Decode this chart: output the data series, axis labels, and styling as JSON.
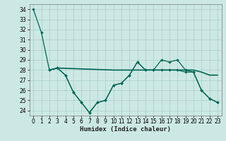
{
  "title": "",
  "xlabel": "Humidex (Indice chaleur)",
  "background_color": "#cce8e4",
  "grid_color": "#a8cec8",
  "line_color": "#006655",
  "xlim": [
    -0.5,
    23.5
  ],
  "ylim": [
    23.5,
    34.5
  ],
  "yticks": [
    24,
    25,
    26,
    27,
    28,
    29,
    30,
    31,
    32,
    33,
    34
  ],
  "xticks": [
    0,
    1,
    2,
    3,
    4,
    5,
    6,
    7,
    8,
    9,
    10,
    11,
    12,
    13,
    14,
    15,
    16,
    17,
    18,
    19,
    20,
    21,
    22,
    23
  ],
  "line1_x": [
    0,
    1,
    2,
    3,
    4,
    5,
    6,
    7,
    8,
    9,
    10,
    11,
    12,
    13,
    14,
    15,
    16,
    17,
    18,
    19,
    20,
    21,
    22,
    23
  ],
  "line1_y": [
    34.0,
    31.7,
    28.0,
    28.2,
    27.5,
    25.8,
    24.8,
    23.8,
    24.8,
    25.0,
    26.5,
    26.7,
    27.5,
    28.8,
    28.0,
    28.0,
    28.0,
    28.0,
    28.0,
    27.8,
    27.8,
    26.0,
    25.2,
    24.8
  ],
  "line2_x": [
    2,
    3,
    10,
    11,
    12,
    13,
    14,
    15,
    16,
    17,
    18,
    19,
    20,
    21,
    22,
    23
  ],
  "line2_y": [
    28.0,
    28.2,
    28.0,
    28.0,
    28.0,
    28.0,
    28.0,
    28.0,
    28.0,
    28.0,
    28.0,
    28.0,
    28.0,
    27.8,
    27.5,
    27.5
  ],
  "line3_x": [
    2,
    3,
    4,
    5,
    6,
    7,
    8,
    9,
    10,
    11,
    12,
    13,
    14,
    15,
    16,
    17,
    18,
    19,
    20,
    21,
    22,
    23
  ],
  "line3_y": [
    28.0,
    28.2,
    27.5,
    25.8,
    24.8,
    23.8,
    24.8,
    25.0,
    26.5,
    26.7,
    27.5,
    28.8,
    28.0,
    28.0,
    29.0,
    28.8,
    29.0,
    28.0,
    27.8,
    26.0,
    25.2,
    24.8
  ],
  "tick_fontsize": 5.5,
  "xlabel_fontsize": 6.5
}
